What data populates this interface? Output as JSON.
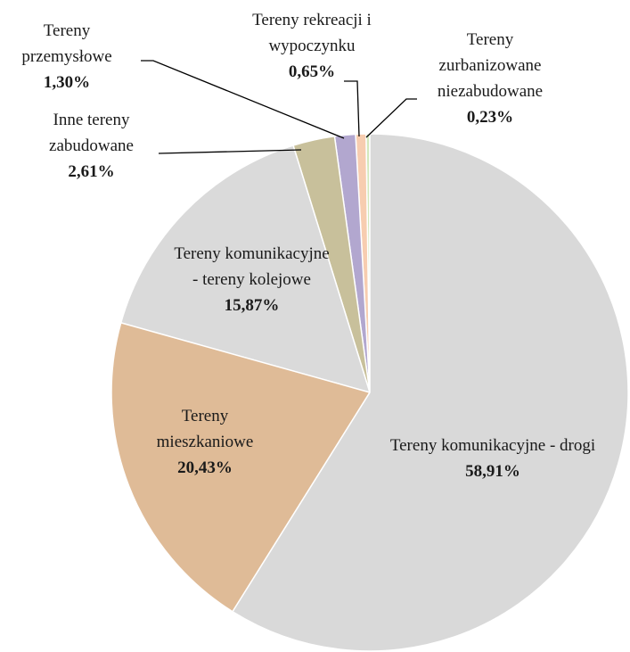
{
  "chart_data": {
    "type": "pie",
    "categories": [
      "Tereny komunikacyjne - drogi",
      "Tereny mieszkaniowe",
      "Tereny komunikacyjne - tereny kolejowe",
      "Inne tereny zabudowane",
      "Tereny przemysłowe",
      "Tereny rekreacji i wypoczynku",
      "Tereny zurbanizowane niezabudowane"
    ],
    "values": [
      58.91,
      20.43,
      15.87,
      2.61,
      1.3,
      0.65,
      0.23
    ],
    "value_labels": [
      "58,91%",
      "20,43%",
      "15,87%",
      "2,61%",
      "1,30%",
      "0,65%",
      "0,23%"
    ],
    "colors": [
      "#d9d9d9",
      "#dfbb97",
      "#dadada",
      "#c8c09b",
      "#b2a7cf",
      "#f7cdb0",
      "#d3e8bc"
    ]
  }
}
